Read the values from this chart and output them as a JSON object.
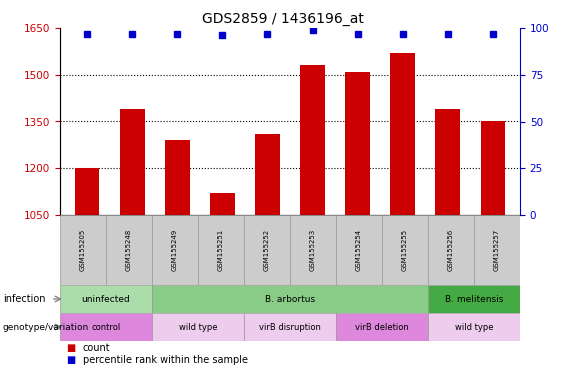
{
  "title": "GDS2859 / 1436196_at",
  "samples": [
    "GSM155205",
    "GSM155248",
    "GSM155249",
    "GSM155251",
    "GSM155252",
    "GSM155253",
    "GSM155254",
    "GSM155255",
    "GSM155256",
    "GSM155257"
  ],
  "counts": [
    1200,
    1390,
    1290,
    1120,
    1310,
    1530,
    1510,
    1570,
    1390,
    1350
  ],
  "percentile_ranks": [
    97,
    97,
    97,
    96,
    97,
    99,
    97,
    97,
    97,
    97
  ],
  "ylim_left": [
    1050,
    1650
  ],
  "ylim_right": [
    0,
    100
  ],
  "yticks_left": [
    1050,
    1200,
    1350,
    1500,
    1650
  ],
  "yticks_right": [
    0,
    25,
    50,
    75,
    100
  ],
  "bar_color": "#cc0000",
  "dot_color": "#0000cc",
  "axis_left_color": "#cc0000",
  "axis_right_color": "#0000cc",
  "inf_groups": [
    [
      0,
      2,
      "uninfected",
      "#aaddaa"
    ],
    [
      2,
      8,
      "B. arbortus",
      "#88cc88"
    ],
    [
      8,
      10,
      "B. melitensis",
      "#44aa44"
    ]
  ],
  "gen_groups": [
    [
      0,
      2,
      "control",
      "#dd88dd"
    ],
    [
      2,
      4,
      "wild type",
      "#eeccee"
    ],
    [
      4,
      6,
      "virB disruption",
      "#eeccee"
    ],
    [
      6,
      8,
      "virB deletion",
      "#dd88dd"
    ],
    [
      8,
      10,
      "wild type",
      "#eeccee"
    ]
  ],
  "legend_count_color": "#cc0000",
  "legend_pct_color": "#0000cc",
  "sample_box_color": "#cccccc",
  "grid_lines": [
    1200,
    1350,
    1500
  ]
}
